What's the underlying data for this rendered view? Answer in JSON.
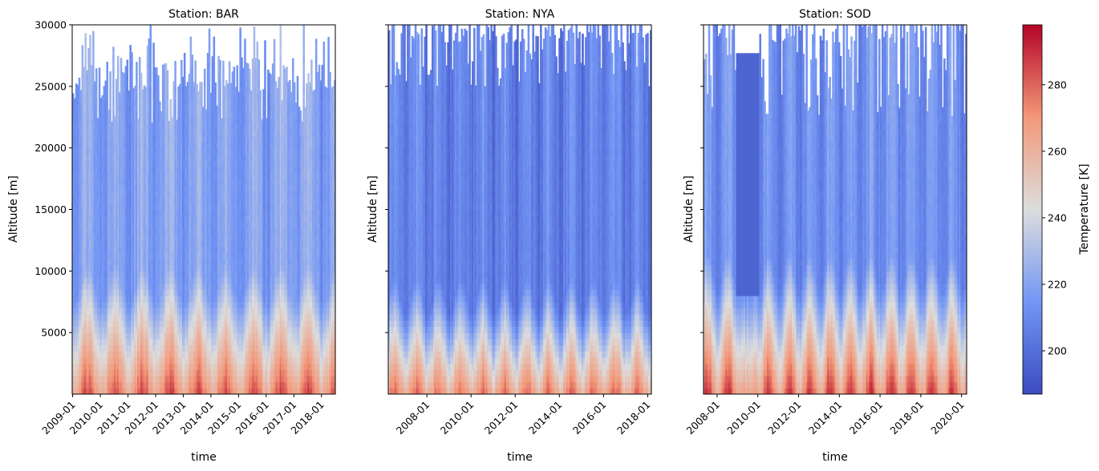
{
  "chart_data": [
    {
      "type": "heatmap",
      "title": "Station: BAR",
      "xlabel": "time",
      "ylabel": "Altitude [m]",
      "ylim": [
        0,
        30000
      ],
      "xlim": [
        "2008-12-25",
        "2018-07-01"
      ],
      "xticks": [
        "2009-01",
        "2010-01",
        "2011-01",
        "2012-01",
        "2013-01",
        "2014-01",
        "2015-01",
        "2016-01",
        "2017-01",
        "2018-01"
      ],
      "yticks": [
        5000,
        10000,
        15000,
        20000,
        25000,
        30000
      ],
      "ytick_labels": [
        "5000",
        "10000",
        "15000",
        "20000",
        "25000",
        "30000"
      ],
      "temperature_profile": {
        "surface_summer_K": 285,
        "surface_winter_K": 262,
        "tropopause_altitude_m": 9000,
        "stratosphere_K": 220
      },
      "data_top_altitude_m": {
        "min": 22000,
        "max": 30000,
        "typical": 26000
      }
    },
    {
      "type": "heatmap",
      "title": "Station: NYA",
      "xlabel": "time",
      "ylabel": "Altitude [m]",
      "ylim": [
        0,
        30000
      ],
      "xlim": [
        "2006-04-01",
        "2018-03-01"
      ],
      "xticks": [
        "2008-01",
        "2010-01",
        "2012-01",
        "2014-01",
        "2016-01",
        "2018-01"
      ],
      "yticks": [
        5000,
        10000,
        15000,
        20000,
        25000,
        30000
      ],
      "ytick_labels": [
        "",
        "",
        "",
        "",
        "",
        ""
      ],
      "temperature_profile": {
        "surface_summer_K": 280,
        "surface_winter_K": 258,
        "tropopause_altitude_m": 8000,
        "stratosphere_K": 212,
        "stratosphere_winter_K": 195
      },
      "data_top_altitude_m": {
        "min": 25000,
        "max": 30000,
        "typical": 30000
      }
    },
    {
      "type": "heatmap",
      "title": "Station: SOD",
      "xlabel": "time",
      "ylabel": "Altitude [m]",
      "ylim": [
        0,
        30000
      ],
      "xlim": [
        "2007-05-01",
        "2020-04-01"
      ],
      "xticks": [
        "2008-01",
        "2010-01",
        "2012-01",
        "2014-01",
        "2016-01",
        "2018-01",
        "2020-01"
      ],
      "yticks": [
        5000,
        10000,
        15000,
        20000,
        25000,
        30000
      ],
      "ytick_labels": [
        "",
        "",
        "",
        "",
        "",
        ""
      ],
      "temperature_profile": {
        "surface_summer_K": 290,
        "surface_winter_K": 262,
        "tropopause_altitude_m": 10000,
        "stratosphere_K": 218,
        "stratosphere_winter_K": 200
      },
      "data_top_altitude_m": {
        "min": 22500,
        "max": 30000,
        "typical": 30000
      },
      "gap_period": [
        "2008-12",
        "2010-02"
      ],
      "gap_period_top_altitude_m": 27700
    }
  ],
  "colorbar": {
    "label": "Temperature [K]",
    "colormap": "coolwarm",
    "vmin": 187,
    "vmax": 298,
    "ticks": [
      200,
      220,
      240,
      260,
      280
    ],
    "tick_labels": [
      "200",
      "220",
      "240",
      "260",
      "280"
    ]
  }
}
